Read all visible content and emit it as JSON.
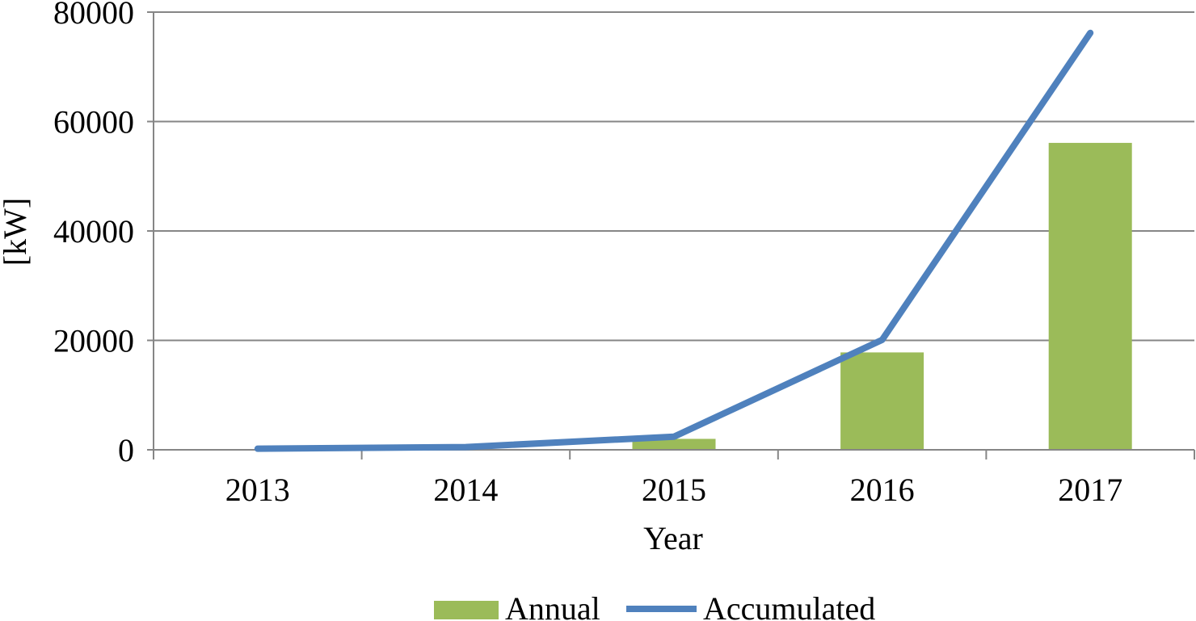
{
  "chart_data": {
    "type": "bar",
    "categories": [
      "2013",
      "2014",
      "2015",
      "2016",
      "2017"
    ],
    "xlabel": "Year",
    "ylabel": "[kW]",
    "ylim": [
      0,
      80000
    ],
    "yticks": [
      0,
      20000,
      40000,
      60000,
      80000
    ],
    "grid": true,
    "legend_position": "bottom",
    "series": [
      {
        "name": "Annual",
        "type": "bar",
        "color": "#9bbb59",
        "values": [
          0,
          0,
          2000,
          17800,
          56100
        ]
      },
      {
        "name": "Accumulated",
        "type": "line",
        "color": "#4f81bd",
        "values": [
          200,
          500,
          2400,
          20100,
          76200
        ]
      }
    ]
  }
}
